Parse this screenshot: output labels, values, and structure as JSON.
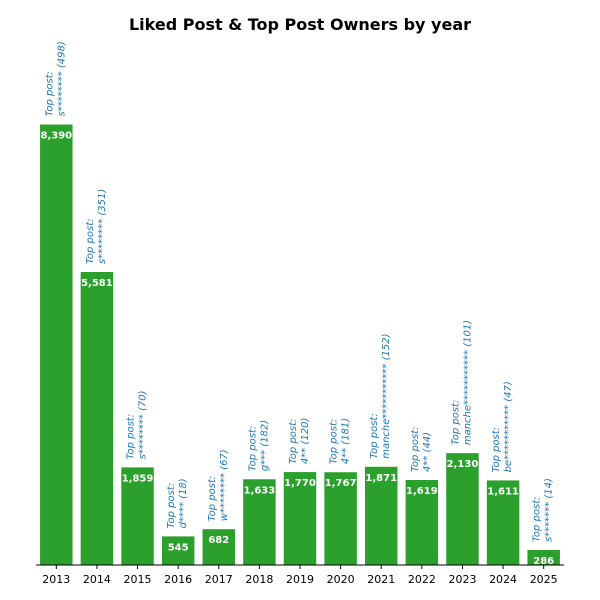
{
  "chart_data": {
    "type": "bar",
    "title": "Liked Post & Top Post Owners by year",
    "xlabel": "",
    "ylabel": "",
    "categories": [
      "2013",
      "2014",
      "2015",
      "2016",
      "2017",
      "2018",
      "2019",
      "2020",
      "2021",
      "2022",
      "2023",
      "2024",
      "2025"
    ],
    "values": [
      8390,
      5581,
      1859,
      545,
      682,
      1633,
      1770,
      1767,
      1871,
      1619,
      2130,
      1611,
      286
    ],
    "value_labels": [
      "8,390",
      "5,581",
      "1,859",
      "545",
      "682",
      "1,633",
      "1,770",
      "1,767",
      "1,871",
      "1,619",
      "2,130",
      "1,611",
      "286"
    ],
    "annotations": [
      [
        "Top post:",
        "s******** (498)"
      ],
      [
        "Top post:",
        "s******** (351)"
      ],
      [
        "Top post:",
        "s******** (70)"
      ],
      [
        "Top post:",
        "d**** (18)"
      ],
      [
        "Top post:",
        "w******** (67)"
      ],
      [
        "Top post:",
        "g*** (182)"
      ],
      [
        "Top post:",
        "4** (120)"
      ],
      [
        "Top post:",
        "4** (181)"
      ],
      [
        "Top post:",
        "manche*********** (152)"
      ],
      [
        "Top post:",
        "4** (44)"
      ],
      [
        "Top post:",
        "manche*********** (101)"
      ],
      [
        "Top post:",
        "be*********** (47)"
      ],
      [
        "Top post:",
        "s******* (14)"
      ]
    ],
    "ylim": [
      0,
      10000
    ],
    "grid": false,
    "legend": "none",
    "colors": {
      "bar": "#2ca02c",
      "value_label": "#ffffff",
      "annotation": "#1f77b4",
      "axis": "#000000"
    }
  }
}
